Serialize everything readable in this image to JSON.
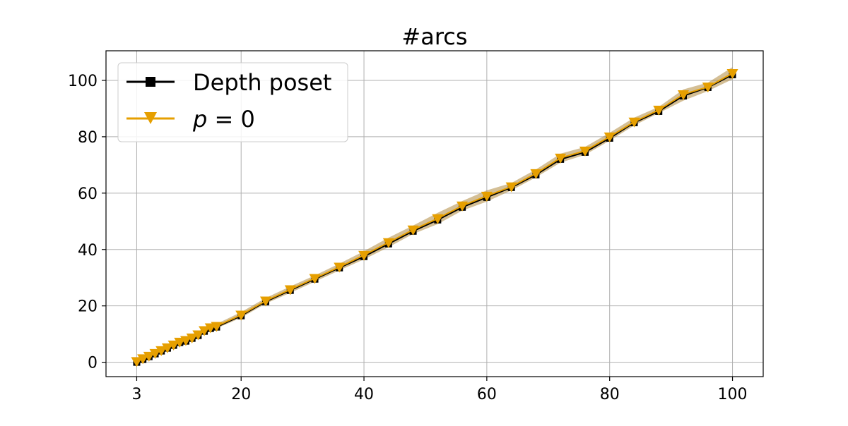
{
  "chart_data": {
    "type": "line",
    "title": "#arcs",
    "xlabel": "",
    "ylabel": "",
    "xlim": [
      -2,
      105
    ],
    "ylim": [
      -5.1,
      110.5
    ],
    "x_ticks": [
      3,
      20,
      40,
      60,
      80,
      100
    ],
    "y_ticks": [
      0,
      20,
      40,
      60,
      80,
      100
    ],
    "grid": true,
    "legend_position": "top-left",
    "series": [
      {
        "name": "Depth poset",
        "color": "#000000",
        "marker": "square",
        "x": [
          3,
          4,
          5,
          6,
          7,
          8,
          9,
          10,
          11,
          12,
          13,
          14,
          15,
          16,
          20,
          24,
          28,
          32,
          36,
          40,
          44,
          48,
          52,
          56,
          60,
          64,
          68,
          72,
          76,
          80,
          84,
          88,
          92,
          96,
          100
        ],
        "y": [
          0,
          1,
          2,
          3,
          4,
          5,
          6,
          7,
          7.5,
          8.5,
          9.5,
          11,
          12,
          12.5,
          16.5,
          21.5,
          25.5,
          29.5,
          33.5,
          37.5,
          42,
          46.5,
          50.5,
          55,
          58.5,
          62,
          66.5,
          72,
          74.5,
          79.5,
          85,
          89,
          94.5,
          97.5,
          102
        ]
      },
      {
        "name": "p = 0",
        "label_parts": {
          "italic": "p",
          "rest": " = 0"
        },
        "color": "#e69f00",
        "band_color": "#b08a40",
        "marker": "triangle-down",
        "x": [
          3,
          4,
          5,
          6,
          7,
          8,
          9,
          10,
          11,
          12,
          13,
          14,
          15,
          16,
          20,
          24,
          28,
          32,
          36,
          40,
          44,
          48,
          52,
          56,
          60,
          64,
          68,
          72,
          76,
          80,
          84,
          88,
          92,
          96,
          100
        ],
        "y": [
          0.3,
          1.3,
          2.2,
          3.2,
          4.2,
          5.2,
          6.2,
          7.2,
          7.8,
          8.7,
          9.8,
          11.3,
          12.3,
          12.8,
          16.8,
          21.8,
          25.8,
          29.8,
          33.8,
          38,
          42.5,
          47,
          51,
          55.5,
          59,
          62.3,
          67,
          72.5,
          75,
          80,
          85.3,
          89.5,
          95,
          97.7,
          102.5
        ],
        "band_lower": [
          0,
          0.8,
          1.7,
          2.6,
          3.6,
          4.6,
          5.5,
          6.5,
          7,
          8,
          9,
          10.5,
          11.4,
          12,
          15.8,
          20.8,
          24.6,
          28.6,
          32.6,
          36.5,
          40.8,
          45.5,
          49,
          53.8,
          57,
          61,
          65.6,
          70.8,
          73.6,
          78.6,
          84,
          88.4,
          92.8,
          96.2,
          100.4
        ],
        "band_upper": [
          0.7,
          1.8,
          2.7,
          3.8,
          4.8,
          5.8,
          6.9,
          7.9,
          8.6,
          9.5,
          10.6,
          12.1,
          13.2,
          13.6,
          17.8,
          22.8,
          26.9,
          30.8,
          35,
          39.4,
          44.2,
          48.5,
          53,
          57.2,
          61,
          63.6,
          68.4,
          74,
          76.4,
          81.4,
          86.8,
          90.6,
          96.8,
          99.2,
          104.7
        ]
      }
    ]
  }
}
